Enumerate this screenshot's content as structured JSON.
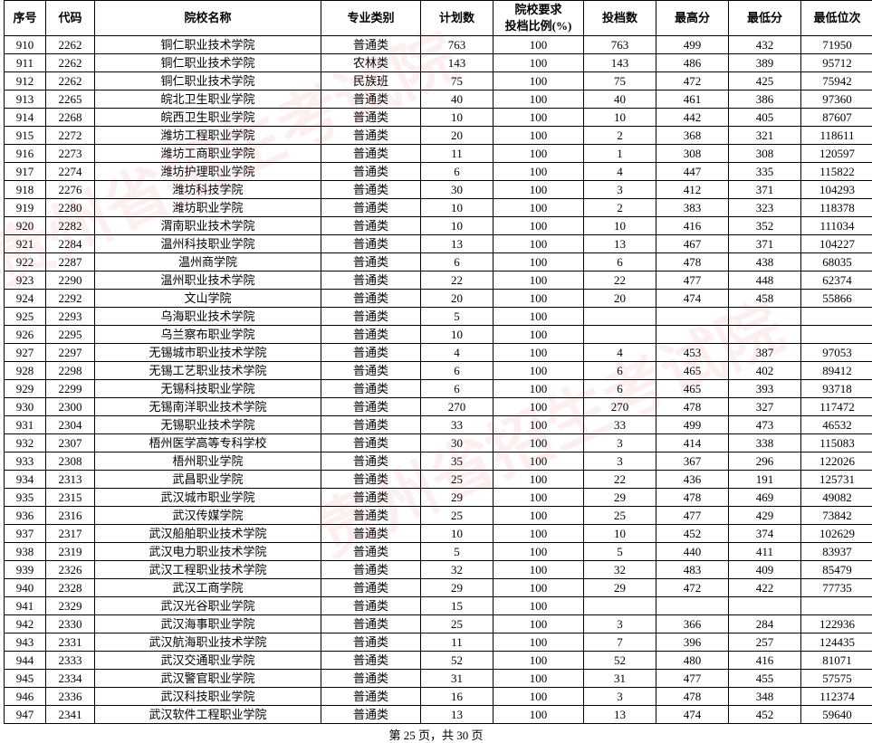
{
  "headers": [
    "序号",
    "代码",
    "院校名称",
    "专业类别",
    "计划数",
    "院校要求\n投档比例(%)",
    "投档数",
    "最高分",
    "最低分",
    "最低位次"
  ],
  "footer": "第 25 页，共 30 页",
  "rows": [
    [
      "910",
      "2262",
      "铜仁职业技术学院",
      "普通类",
      "763",
      "100",
      "763",
      "499",
      "432",
      "71950"
    ],
    [
      "911",
      "2262",
      "铜仁职业技术学院",
      "农林类",
      "143",
      "100",
      "143",
      "486",
      "389",
      "95712"
    ],
    [
      "912",
      "2262",
      "铜仁职业技术学院",
      "民族班",
      "75",
      "100",
      "75",
      "472",
      "425",
      "75942"
    ],
    [
      "913",
      "2265",
      "皖北卫生职业学院",
      "普通类",
      "40",
      "100",
      "40",
      "461",
      "386",
      "97360"
    ],
    [
      "914",
      "2268",
      "皖西卫生职业学院",
      "普通类",
      "10",
      "100",
      "10",
      "442",
      "405",
      "87607"
    ],
    [
      "915",
      "2272",
      "潍坊工程职业学院",
      "普通类",
      "20",
      "100",
      "2",
      "368",
      "321",
      "118611"
    ],
    [
      "916",
      "2273",
      "潍坊工商职业学院",
      "普通类",
      "11",
      "100",
      "1",
      "308",
      "308",
      "120597"
    ],
    [
      "917",
      "2274",
      "潍坊护理职业学院",
      "普通类",
      "6",
      "100",
      "4",
      "447",
      "335",
      "115822"
    ],
    [
      "918",
      "2276",
      "潍坊科技学院",
      "普通类",
      "30",
      "100",
      "3",
      "412",
      "371",
      "104293"
    ],
    [
      "919",
      "2280",
      "潍坊职业学院",
      "普通类",
      "10",
      "100",
      "2",
      "383",
      "323",
      "118378"
    ],
    [
      "920",
      "2282",
      "渭南职业技术学院",
      "普通类",
      "10",
      "100",
      "10",
      "416",
      "352",
      "111034"
    ],
    [
      "921",
      "2284",
      "温州科技职业学院",
      "普通类",
      "13",
      "100",
      "13",
      "467",
      "371",
      "104227"
    ],
    [
      "922",
      "2287",
      "温州商学院",
      "普通类",
      "6",
      "100",
      "6",
      "478",
      "438",
      "68035"
    ],
    [
      "923",
      "2290",
      "温州职业技术学院",
      "普通类",
      "22",
      "100",
      "22",
      "477",
      "448",
      "62374"
    ],
    [
      "924",
      "2292",
      "文山学院",
      "普通类",
      "20",
      "100",
      "20",
      "474",
      "458",
      "55866"
    ],
    [
      "925",
      "2293",
      "乌海职业技术学院",
      "普通类",
      "5",
      "100",
      "",
      "",
      "",
      ""
    ],
    [
      "926",
      "2295",
      "乌兰察布职业学院",
      "普通类",
      "10",
      "100",
      "",
      "",
      "",
      ""
    ],
    [
      "927",
      "2297",
      "无锡城市职业技术学院",
      "普通类",
      "4",
      "100",
      "4",
      "453",
      "387",
      "97053"
    ],
    [
      "928",
      "2298",
      "无锡工艺职业技术学院",
      "普通类",
      "6",
      "100",
      "6",
      "465",
      "402",
      "89412"
    ],
    [
      "929",
      "2299",
      "无锡科技职业学院",
      "普通类",
      "6",
      "100",
      "6",
      "465",
      "393",
      "93718"
    ],
    [
      "930",
      "2300",
      "无锡南洋职业技术学院",
      "普通类",
      "270",
      "100",
      "270",
      "478",
      "327",
      "117472"
    ],
    [
      "931",
      "2304",
      "无锡职业技术学院",
      "普通类",
      "33",
      "100",
      "33",
      "499",
      "473",
      "46532"
    ],
    [
      "932",
      "2307",
      "梧州医学高等专科学校",
      "普通类",
      "30",
      "100",
      "3",
      "414",
      "338",
      "115083"
    ],
    [
      "933",
      "2308",
      "梧州职业学院",
      "普通类",
      "35",
      "100",
      "3",
      "367",
      "296",
      "122026"
    ],
    [
      "934",
      "2313",
      "武昌职业学院",
      "普通类",
      "25",
      "100",
      "22",
      "436",
      "191",
      "125731"
    ],
    [
      "935",
      "2315",
      "武汉城市职业学院",
      "普通类",
      "29",
      "100",
      "29",
      "478",
      "469",
      "49082"
    ],
    [
      "936",
      "2316",
      "武汉传媒学院",
      "普通类",
      "25",
      "100",
      "25",
      "477",
      "429",
      "73842"
    ],
    [
      "937",
      "2317",
      "武汉船舶职业技术学院",
      "普通类",
      "10",
      "100",
      "10",
      "452",
      "374",
      "102629"
    ],
    [
      "938",
      "2319",
      "武汉电力职业技术学院",
      "普通类",
      "5",
      "100",
      "5",
      "440",
      "411",
      "83937"
    ],
    [
      "939",
      "2326",
      "武汉工程职业技术学院",
      "普通类",
      "32",
      "100",
      "32",
      "483",
      "409",
      "85479"
    ],
    [
      "940",
      "2328",
      "武汉工商学院",
      "普通类",
      "29",
      "100",
      "29",
      "472",
      "422",
      "77735"
    ],
    [
      "941",
      "2329",
      "武汉光谷职业学院",
      "普通类",
      "15",
      "100",
      "",
      "",
      "",
      ""
    ],
    [
      "942",
      "2330",
      "武汉海事职业学院",
      "普通类",
      "25",
      "100",
      "3",
      "366",
      "284",
      "122936"
    ],
    [
      "943",
      "2331",
      "武汉航海职业技术学院",
      "普通类",
      "11",
      "100",
      "7",
      "396",
      "257",
      "124435"
    ],
    [
      "944",
      "2333",
      "武汉交通职业学院",
      "普通类",
      "52",
      "100",
      "52",
      "480",
      "416",
      "81071"
    ],
    [
      "945",
      "2334",
      "武汉警官职业学院",
      "普通类",
      "31",
      "100",
      "31",
      "477",
      "455",
      "57575"
    ],
    [
      "946",
      "2336",
      "武汉科技职业学院",
      "普通类",
      "16",
      "100",
      "3",
      "478",
      "348",
      "112374"
    ],
    [
      "947",
      "2341",
      "武汉软件工程职业学院",
      "普通类",
      "13",
      "100",
      "13",
      "474",
      "452",
      "59640"
    ]
  ]
}
